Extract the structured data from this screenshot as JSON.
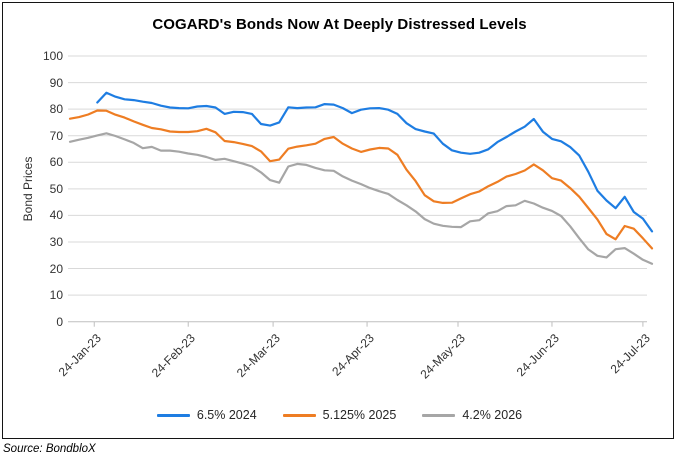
{
  "source": {
    "note": "Source: BondbloX"
  },
  "chart_data": {
    "type": "line",
    "title": "COGARD's Bonds Now At Deeply Distressed Levels",
    "xlabel": "",
    "ylabel": "Bond Prices",
    "ylim": [
      0,
      100
    ],
    "y_ticks": [
      0,
      10,
      20,
      30,
      40,
      50,
      60,
      70,
      80,
      90,
      100
    ],
    "grid": "horizontal",
    "legend_position": "bottom",
    "x_unit": "days (daily bond prices, x_days = days since 16-Jan-2023)",
    "x_range_days": [
      0,
      192
    ],
    "x_tick_days": [
      8,
      39,
      67,
      98,
      128,
      159,
      189
    ],
    "x_tick_labels": [
      "24-Jan-23",
      "24-Feb-23",
      "24-Mar-23",
      "24-Apr-23",
      "24-May-23",
      "24-Jun-23",
      "24-Jul-23"
    ],
    "x_days": [
      0,
      3,
      6,
      9,
      12,
      15,
      18,
      21,
      24,
      27,
      30,
      33,
      36,
      39,
      42,
      45,
      48,
      51,
      54,
      57,
      60,
      63,
      66,
      69,
      72,
      75,
      78,
      81,
      84,
      87,
      90,
      93,
      96,
      99,
      102,
      105,
      108,
      111,
      114,
      117,
      120,
      123,
      126,
      129,
      132,
      135,
      138,
      141,
      144,
      147,
      150,
      153,
      156,
      159,
      162,
      165,
      168,
      171,
      174,
      177,
      180,
      183,
      186,
      189,
      192
    ],
    "series": [
      {
        "name": "6.5% 2024",
        "color": "#1e7de2",
        "values": [
          null,
          null,
          null,
          82.5,
          86.2,
          84.7,
          83.7,
          83.4,
          82.8,
          82.3,
          81.3,
          80.6,
          80.4,
          80.3,
          81.0,
          81.2,
          80.6,
          78.2,
          79.0,
          78.9,
          78.2,
          74.4,
          73.8,
          75.0,
          80.7,
          80.4,
          80.6,
          80.7,
          81.9,
          81.7,
          80.4,
          78.5,
          79.8,
          80.3,
          80.4,
          79.8,
          78.2,
          74.7,
          72.5,
          71.6,
          70.8,
          67.0,
          64.5,
          63.6,
          63.2,
          63.6,
          64.9,
          67.6,
          69.5,
          71.6,
          73.4,
          76.3,
          71.5,
          68.8,
          67.9,
          65.7,
          62.5,
          56.4,
          49.3,
          45.6,
          42.7,
          47.0,
          41.3,
          38.8,
          34.0
        ]
      },
      {
        "name": "5.125% 2025",
        "color": "#ee7d23",
        "values": [
          76.4,
          77.0,
          78.0,
          79.5,
          79.4,
          77.9,
          76.8,
          75.4,
          74.1,
          72.9,
          72.4,
          71.6,
          71.4,
          71.4,
          71.7,
          72.6,
          71.3,
          68.0,
          67.6,
          66.9,
          66.1,
          64.1,
          60.4,
          61.0,
          65.1,
          65.9,
          66.4,
          67.0,
          68.8,
          69.5,
          67.0,
          65.2,
          63.9,
          64.8,
          65.4,
          65.2,
          62.8,
          57.2,
          52.9,
          47.6,
          45.3,
          44.7,
          44.8,
          46.4,
          48.0,
          49.0,
          51.0,
          52.6,
          54.6,
          55.6,
          56.9,
          59.2,
          57.0,
          54.0,
          53.1,
          50.3,
          47.0,
          42.8,
          38.5,
          33.0,
          31.0,
          36.0,
          35.0,
          31.4,
          27.6
        ]
      },
      {
        "name": "4.2% 2026",
        "color": "#a6a6a6",
        "values": [
          67.7,
          68.5,
          69.2,
          70.1,
          70.9,
          69.9,
          68.6,
          67.3,
          65.3,
          65.8,
          64.4,
          64.4,
          64.0,
          63.3,
          62.8,
          62.0,
          60.9,
          61.3,
          60.4,
          59.5,
          58.4,
          56.2,
          53.3,
          52.3,
          58.4,
          59.4,
          59.0,
          57.9,
          57.0,
          56.8,
          54.7,
          53.1,
          51.8,
          50.3,
          49.1,
          48.1,
          45.8,
          43.8,
          41.5,
          38.6,
          36.9,
          36.1,
          35.7,
          35.6,
          37.8,
          38.2,
          40.8,
          41.6,
          43.5,
          43.8,
          45.5,
          44.5,
          42.9,
          41.7,
          39.8,
          35.9,
          31.4,
          27.2,
          24.8,
          24.2,
          27.3,
          27.7,
          25.6,
          23.3,
          21.8
        ]
      }
    ]
  }
}
